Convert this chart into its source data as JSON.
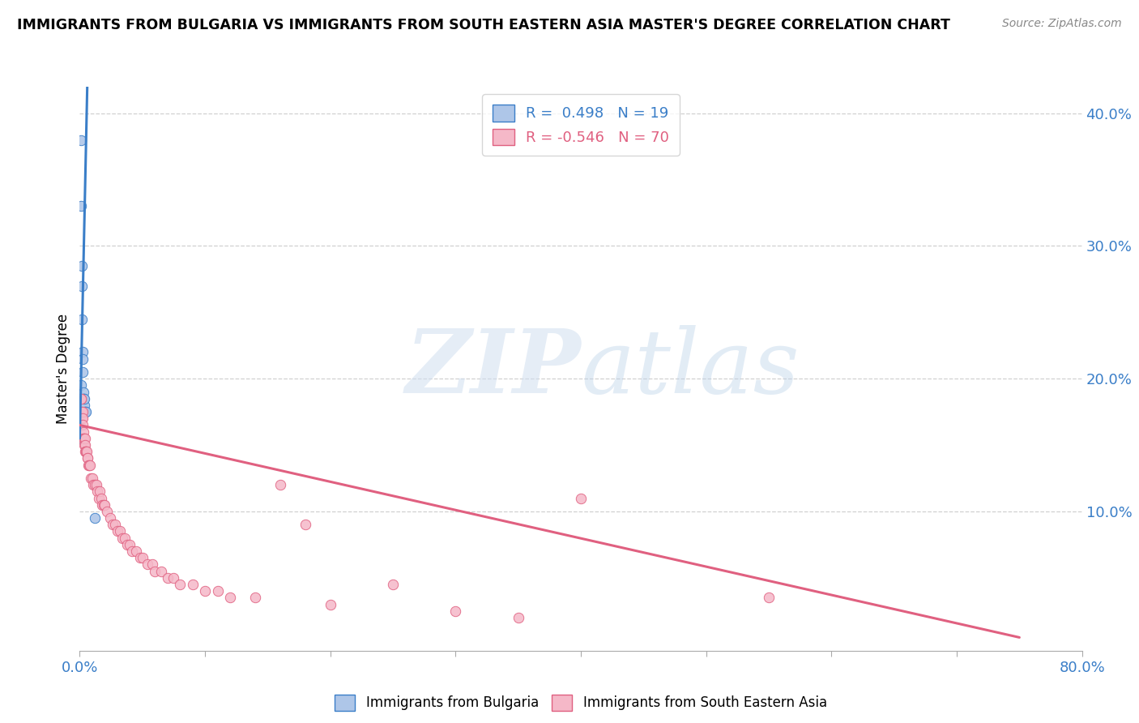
{
  "title": "IMMIGRANTS FROM BULGARIA VS IMMIGRANTS FROM SOUTH EASTERN ASIA MASTER'S DEGREE CORRELATION CHART",
  "source": "Source: ZipAtlas.com",
  "ylabel": "Master's Degree",
  "right_yticks": [
    "40.0%",
    "30.0%",
    "20.0%",
    "10.0%"
  ],
  "right_ytick_vals": [
    0.4,
    0.3,
    0.2,
    0.1
  ],
  "legend_blue_rval": "0.498",
  "legend_blue_nval": "19",
  "legend_pink_rval": "-0.546",
  "legend_pink_nval": "70",
  "blue_color": "#aec6e8",
  "pink_color": "#f5b8c8",
  "blue_line_color": "#3a7ec8",
  "pink_line_color": "#e06080",
  "bg_color": "#ffffff",
  "blue_scatter": [
    [
      0.0008,
      0.195
    ],
    [
      0.001,
      0.155
    ],
    [
      0.0012,
      0.38
    ],
    [
      0.0013,
      0.33
    ],
    [
      0.0015,
      0.285
    ],
    [
      0.0016,
      0.27
    ],
    [
      0.0018,
      0.245
    ],
    [
      0.002,
      0.22
    ],
    [
      0.0022,
      0.215
    ],
    [
      0.0025,
      0.205
    ],
    [
      0.0027,
      0.19
    ],
    [
      0.003,
      0.185
    ],
    [
      0.0032,
      0.185
    ],
    [
      0.0035,
      0.18
    ],
    [
      0.0038,
      0.185
    ],
    [
      0.004,
      0.175
    ],
    [
      0.0045,
      0.175
    ],
    [
      0.005,
      0.175
    ],
    [
      0.012,
      0.095
    ]
  ],
  "pink_scatter": [
    [
      0.0008,
      0.175
    ],
    [
      0.001,
      0.185
    ],
    [
      0.0012,
      0.185
    ],
    [
      0.0015,
      0.175
    ],
    [
      0.0018,
      0.17
    ],
    [
      0.002,
      0.175
    ],
    [
      0.0022,
      0.17
    ],
    [
      0.0025,
      0.165
    ],
    [
      0.0028,
      0.16
    ],
    [
      0.003,
      0.155
    ],
    [
      0.0032,
      0.155
    ],
    [
      0.0035,
      0.155
    ],
    [
      0.0038,
      0.15
    ],
    [
      0.004,
      0.155
    ],
    [
      0.0042,
      0.15
    ],
    [
      0.0045,
      0.145
    ],
    [
      0.0048,
      0.145
    ],
    [
      0.005,
      0.145
    ],
    [
      0.0055,
      0.145
    ],
    [
      0.006,
      0.14
    ],
    [
      0.0065,
      0.14
    ],
    [
      0.007,
      0.135
    ],
    [
      0.0075,
      0.135
    ],
    [
      0.008,
      0.135
    ],
    [
      0.009,
      0.125
    ],
    [
      0.01,
      0.125
    ],
    [
      0.011,
      0.12
    ],
    [
      0.012,
      0.12
    ],
    [
      0.013,
      0.12
    ],
    [
      0.014,
      0.115
    ],
    [
      0.015,
      0.11
    ],
    [
      0.016,
      0.115
    ],
    [
      0.017,
      0.11
    ],
    [
      0.018,
      0.105
    ],
    [
      0.019,
      0.105
    ],
    [
      0.02,
      0.105
    ],
    [
      0.022,
      0.1
    ],
    [
      0.024,
      0.095
    ],
    [
      0.026,
      0.09
    ],
    [
      0.028,
      0.09
    ],
    [
      0.03,
      0.085
    ],
    [
      0.032,
      0.085
    ],
    [
      0.034,
      0.08
    ],
    [
      0.036,
      0.08
    ],
    [
      0.038,
      0.075
    ],
    [
      0.04,
      0.075
    ],
    [
      0.042,
      0.07
    ],
    [
      0.045,
      0.07
    ],
    [
      0.048,
      0.065
    ],
    [
      0.05,
      0.065
    ],
    [
      0.054,
      0.06
    ],
    [
      0.058,
      0.06
    ],
    [
      0.06,
      0.055
    ],
    [
      0.065,
      0.055
    ],
    [
      0.07,
      0.05
    ],
    [
      0.075,
      0.05
    ],
    [
      0.08,
      0.045
    ],
    [
      0.09,
      0.045
    ],
    [
      0.1,
      0.04
    ],
    [
      0.11,
      0.04
    ],
    [
      0.12,
      0.035
    ],
    [
      0.14,
      0.035
    ],
    [
      0.16,
      0.12
    ],
    [
      0.18,
      0.09
    ],
    [
      0.2,
      0.03
    ],
    [
      0.25,
      0.045
    ],
    [
      0.3,
      0.025
    ],
    [
      0.35,
      0.02
    ],
    [
      0.4,
      0.11
    ],
    [
      0.55,
      0.035
    ]
  ],
  "xlim": [
    0.0,
    0.8
  ],
  "ylim": [
    -0.005,
    0.42
  ],
  "blue_trend_x": [
    0.0,
    0.006
  ],
  "blue_trend_y": [
    0.155,
    0.42
  ],
  "pink_trend_x": [
    0.0,
    0.75
  ],
  "pink_trend_y": [
    0.165,
    0.005
  ]
}
